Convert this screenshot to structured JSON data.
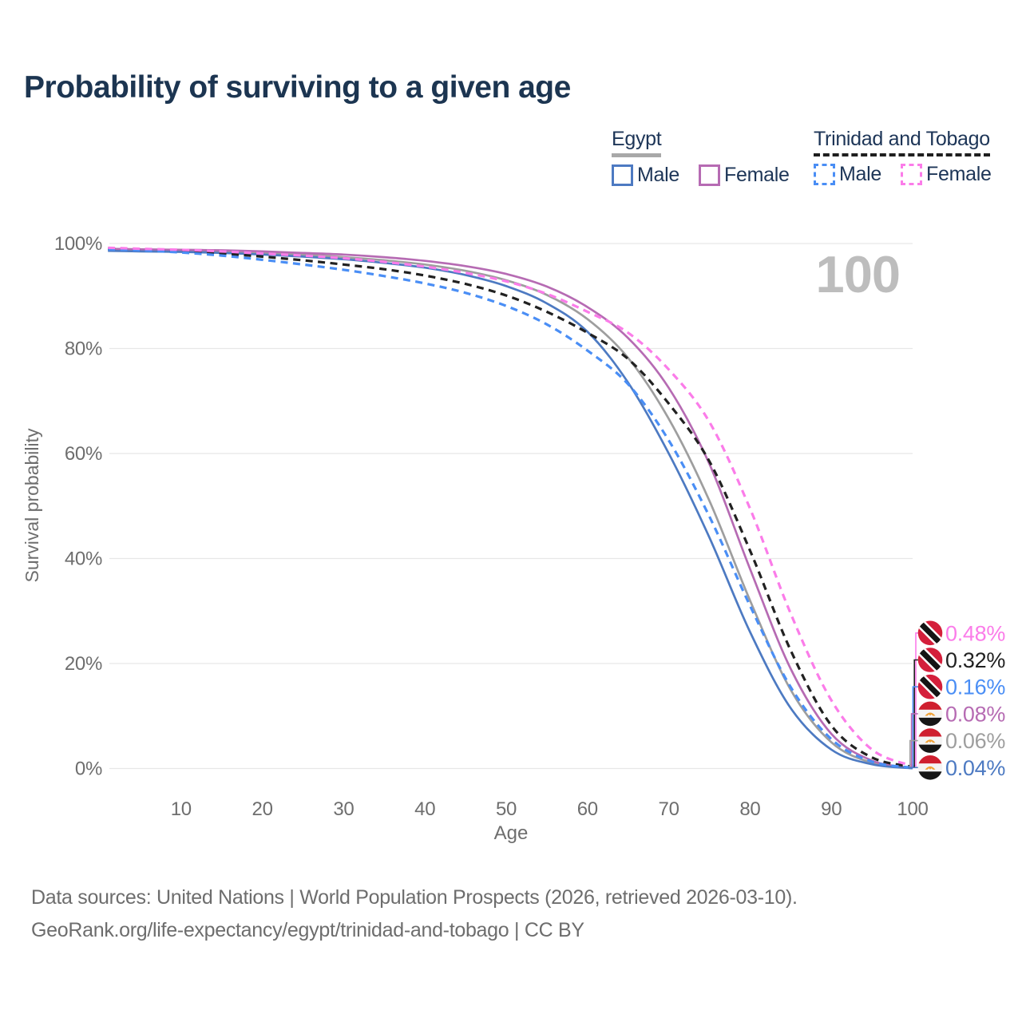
{
  "header": {
    "title": "Probability of surviving to a given age"
  },
  "legend": {
    "groups": [
      {
        "label": "Egypt",
        "line_style": "solid",
        "underline_color": "#a8a8a8",
        "items": [
          {
            "label": "Male",
            "color": "#4d7ac2"
          },
          {
            "label": "Female",
            "color": "#b66bb3"
          }
        ]
      },
      {
        "label": "Trinidad and Tobago",
        "line_style": "dashed",
        "underline_color": "#1f1f1f",
        "items": [
          {
            "label": "Male",
            "color": "#4a8ef5"
          },
          {
            "label": "Female",
            "color": "#fb7ce9"
          }
        ]
      }
    ]
  },
  "chart_data": {
    "type": "line",
    "title": "Probability of surviving to a given age",
    "xlabel": "Age",
    "ylabel": "Survival probability",
    "xlim": [
      0,
      100
    ],
    "ylim": [
      0,
      100
    ],
    "x_ticks": [
      10,
      20,
      30,
      40,
      50,
      60,
      70,
      80,
      90,
      100
    ],
    "y_ticks": [
      0,
      20,
      40,
      60,
      80,
      100
    ],
    "y_tick_suffix": "%",
    "grid": "horizontal",
    "watermark": "100",
    "x": [
      1,
      5,
      10,
      15,
      20,
      25,
      30,
      35,
      40,
      45,
      50,
      55,
      60,
      65,
      70,
      75,
      80,
      85,
      90,
      95,
      100
    ],
    "series": [
      {
        "name": "Egypt (both sexes)",
        "country": "Egypt",
        "sex": "Both sexes",
        "color": "#9e9e9e",
        "dash": false,
        "flag": "egypt",
        "end_label": "0.06%",
        "values": [
          98.8,
          98.7,
          98.6,
          98.4,
          98.2,
          97.9,
          97.4,
          96.8,
          96.0,
          94.8,
          93.0,
          90.2,
          85.6,
          78.2,
          66.6,
          51.0,
          32.0,
          15.0,
          5.0,
          1.1,
          0.06
        ]
      },
      {
        "name": "Egypt Female",
        "country": "Egypt",
        "sex": "Female",
        "color": "#b66bb3",
        "dash": false,
        "flag": "egypt",
        "end_label": "0.08%",
        "values": [
          99.0,
          98.9,
          98.8,
          98.7,
          98.5,
          98.2,
          97.9,
          97.4,
          96.7,
          95.7,
          94.2,
          91.8,
          87.9,
          82.0,
          72.5,
          58.0,
          38.0,
          19.0,
          6.6,
          1.5,
          0.08
        ]
      },
      {
        "name": "Egypt Male",
        "country": "Egypt",
        "sex": "Male",
        "color": "#4d7ac2",
        "dash": false,
        "flag": "egypt",
        "end_label": "0.04%",
        "values": [
          98.6,
          98.5,
          98.4,
          98.2,
          97.9,
          97.5,
          97.0,
          96.3,
          95.4,
          94.0,
          91.9,
          88.6,
          83.2,
          73.5,
          60.0,
          44.0,
          26.0,
          11.5,
          3.6,
          0.8,
          0.04
        ]
      },
      {
        "name": "Trinidad and Tobago (both sexes)",
        "country": "Trinidad and Tobago",
        "sex": "Both sexes",
        "color": "#212121",
        "dash": true,
        "flag": "trinidad-and-tobago",
        "end_label": "0.32%",
        "values": [
          99.0,
          98.8,
          98.5,
          98.1,
          97.5,
          96.8,
          96.0,
          95.1,
          93.9,
          92.3,
          90.1,
          87.0,
          83.0,
          78.0,
          69.5,
          58.5,
          41.5,
          22.5,
          8.2,
          2.1,
          0.32
        ]
      },
      {
        "name": "Trinidad and Tobago Male",
        "country": "Trinidad and Tobago",
        "sex": "Male",
        "color": "#4a8ef5",
        "dash": true,
        "flag": "trinidad-and-tobago",
        "end_label": "0.16%",
        "values": [
          98.9,
          98.7,
          98.3,
          97.7,
          96.9,
          96.0,
          95.0,
          93.8,
          92.4,
          90.6,
          88.1,
          84.6,
          79.6,
          73.2,
          62.5,
          48.0,
          31.0,
          15.5,
          5.6,
          1.3,
          0.16
        ]
      },
      {
        "name": "Trinidad and Tobago Female",
        "country": "Trinidad and Tobago",
        "sex": "Female",
        "color": "#fb7ce9",
        "dash": true,
        "flag": "trinidad-and-tobago",
        "end_label": "0.48%",
        "values": [
          99.2,
          99.0,
          98.8,
          98.5,
          98.1,
          97.7,
          97.2,
          96.5,
          95.6,
          94.4,
          92.8,
          90.4,
          87.0,
          83.0,
          76.0,
          66.0,
          49.5,
          29.5,
          13.0,
          3.6,
          0.48
        ]
      }
    ],
    "legend_position": "top-right"
  },
  "footer": {
    "lines": [
      "Data sources: United Nations | World Population Prospects (2026, retrieved 2026-03-10).",
      "GeoRank.org/life-expectancy/egypt/trinidad-and-tobago | CC BY"
    ]
  }
}
